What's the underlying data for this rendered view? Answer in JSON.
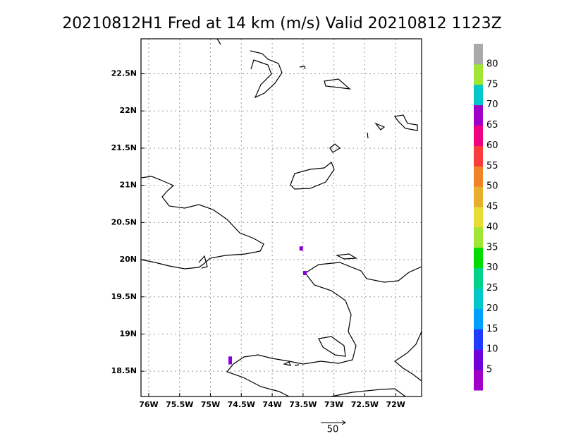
{
  "chart_data": {
    "type": "map",
    "title": "20210812H1 Fred at 14 km (m/s) Valid 20210812 1123Z",
    "xlim": [
      -76.125,
      -71.58
    ],
    "ylim": [
      18.16,
      22.97
    ],
    "xticks": [
      {
        "value": -76,
        "label": "76W"
      },
      {
        "value": -75.5,
        "label": "75.5W"
      },
      {
        "value": -75,
        "label": "75W"
      },
      {
        "value": -74.5,
        "label": "74.5W"
      },
      {
        "value": -74,
        "label": "74W"
      },
      {
        "value": -73.5,
        "label": "73.5W"
      },
      {
        "value": -73,
        "label": "73W"
      },
      {
        "value": -72.5,
        "label": "72.5W"
      },
      {
        "value": -72,
        "label": "72W"
      }
    ],
    "yticks": [
      {
        "value": 18.5,
        "label": "18.5N"
      },
      {
        "value": 19,
        "label": "19N"
      },
      {
        "value": 19.5,
        "label": "19.5N"
      },
      {
        "value": 20,
        "label": "20N"
      },
      {
        "value": 20.5,
        "label": "20.5N"
      },
      {
        "value": 21,
        "label": "21N"
      },
      {
        "value": 21.5,
        "label": "21.5N"
      },
      {
        "value": 22,
        "label": "22N"
      },
      {
        "value": 22.5,
        "label": "22.5N"
      }
    ],
    "grid": true,
    "points": {
      "lon": [
        -73.53,
        -73.47,
        -74.68,
        -74.68
      ],
      "lat": [
        20.15,
        19.82,
        18.67,
        18.62
      ],
      "values": [
        5,
        5,
        5,
        5
      ],
      "color": "#8a00d4"
    },
    "colorbar": {
      "levels": [
        5,
        10,
        15,
        20,
        25,
        30,
        35,
        40,
        45,
        50,
        55,
        60,
        65,
        70,
        75,
        80
      ],
      "colors": [
        "#a000c8",
        "#6e00dc",
        "#1e3cff",
        "#00a0ff",
        "#00c8c8",
        "#00d28c",
        "#00dc00",
        "#a0e632",
        "#e6dc32",
        "#e6af2d",
        "#f08228",
        "#fa3c3c",
        "#f00082",
        "#a000c8",
        "#00c8c8",
        "#a0e632",
        "#aaaaaa"
      ]
    },
    "vector_reference": 50
  }
}
